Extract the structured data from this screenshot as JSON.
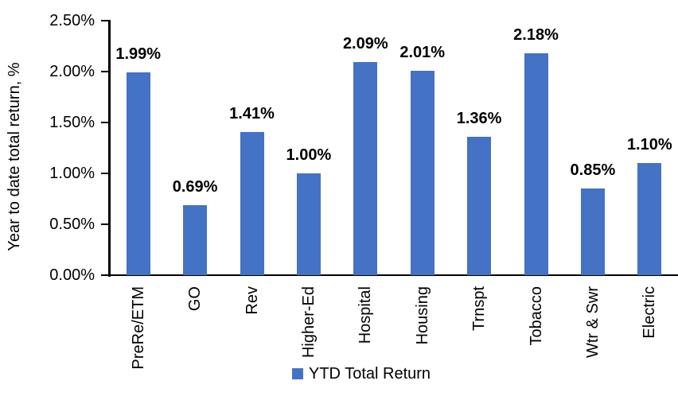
{
  "chart_data": {
    "type": "bar",
    "title": "",
    "ylabel": "Year to date total return, %",
    "xlabel": "",
    "categories": [
      "PreRe/ETM",
      "GO",
      "Rev",
      "Higher-Ed",
      "Hospital",
      "Housing",
      "Trnspt",
      "Tobacco",
      "Wtr & Swr",
      "Electric"
    ],
    "series": [
      {
        "name": "YTD Total Return",
        "values": [
          1.99,
          0.69,
          1.41,
          1.0,
          2.09,
          2.01,
          1.36,
          2.18,
          0.85,
          1.1
        ],
        "value_labels": [
          "1.99%",
          "0.69%",
          "1.41%",
          "1.00%",
          "2.09%",
          "2.01%",
          "1.36%",
          "2.18%",
          "0.85%",
          "1.10%"
        ]
      }
    ],
    "ylim": [
      0,
      2.5
    ],
    "ytick_labels": [
      "0.00%",
      "0.50%",
      "1.00%",
      "1.50%",
      "2.00%",
      "2.50%"
    ],
    "grid": "off",
    "legend_position": "bottom",
    "bar_color": "#4472C4",
    "axis_color": "#000000",
    "label_color": "#000000"
  },
  "legend": {
    "label": "YTD Total Return"
  },
  "y_axis": {
    "title": "Year to date total return, %"
  }
}
